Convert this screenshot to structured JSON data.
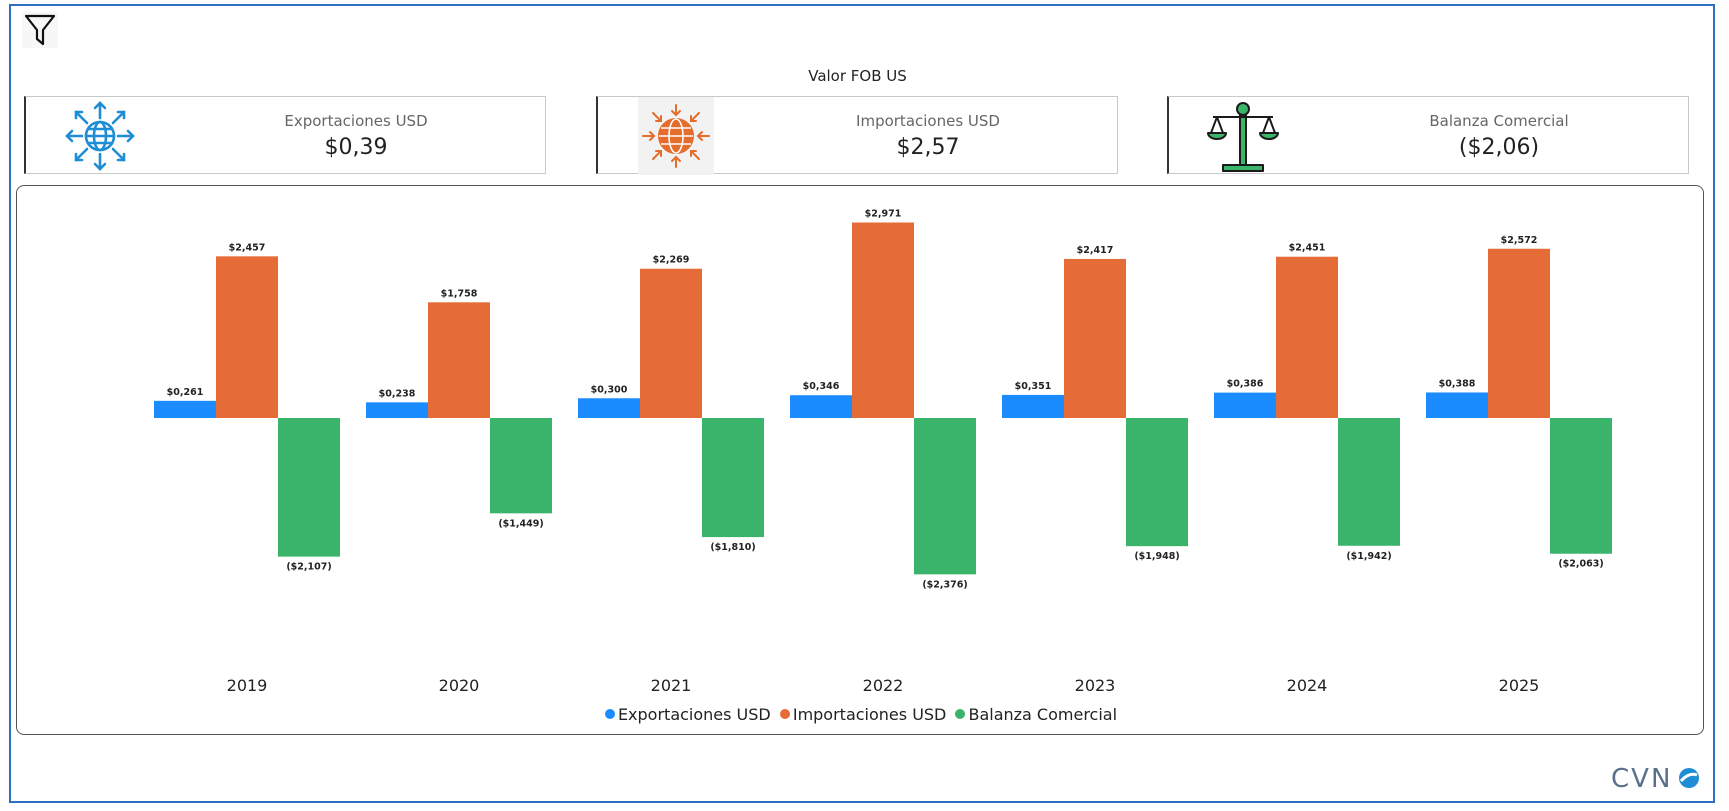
{
  "subtitle": "Valor FOB US",
  "kpis": [
    {
      "label": "Exportaciones USD",
      "value": "$0,39",
      "icon": "globe-arrows-out-icon",
      "color": "#1f8dd6"
    },
    {
      "label": "Importaciones USD",
      "value": "$2,57",
      "icon": "globe-arrows-in-icon",
      "color": "#e46c2c"
    },
    {
      "label": "Balanza Comercial",
      "value": "($2,06)",
      "icon": "balance-scale-icon",
      "color": "#3ab56a"
    }
  ],
  "chart_data": {
    "type": "bar",
    "title": "Valor FOB US",
    "categories": [
      "2019",
      "2020",
      "2021",
      "2022",
      "2023",
      "2024",
      "2025"
    ],
    "series": [
      {
        "name": "Exportaciones USD",
        "color": "#1a8cff",
        "values": [
          0.261,
          0.238,
          0.3,
          0.346,
          0.351,
          0.386,
          0.388
        ],
        "labels": [
          "$0,261",
          "$0,238",
          "$0,300",
          "$0,346",
          "$0,351",
          "$0,386",
          "$0,388"
        ]
      },
      {
        "name": "Importaciones USD",
        "color": "#e66c37",
        "values": [
          2.457,
          1.758,
          2.269,
          2.971,
          2.417,
          2.451,
          2.572
        ],
        "labels": [
          "$2,457",
          "$1,758",
          "$2,269",
          "$2,971",
          "$2,417",
          "$2,451",
          "$2,572"
        ]
      },
      {
        "name": "Balanza Comercial",
        "color": "#3bb46b",
        "values": [
          -2.107,
          -1.449,
          -1.81,
          -2.376,
          -1.948,
          -1.942,
          -2.063
        ],
        "labels": [
          "($2,107)",
          "($1,449)",
          "($1,810)",
          "($2,376)",
          "($1,948)",
          "($1,942)",
          "($2,063)"
        ]
      }
    ],
    "ylim": [
      -2.5,
      3.1
    ],
    "grid": false,
    "legend": "bottom-center",
    "xlabel": "",
    "ylabel": ""
  },
  "brand": {
    "logo_text": "CVN",
    "color": "#5a6f8a"
  }
}
